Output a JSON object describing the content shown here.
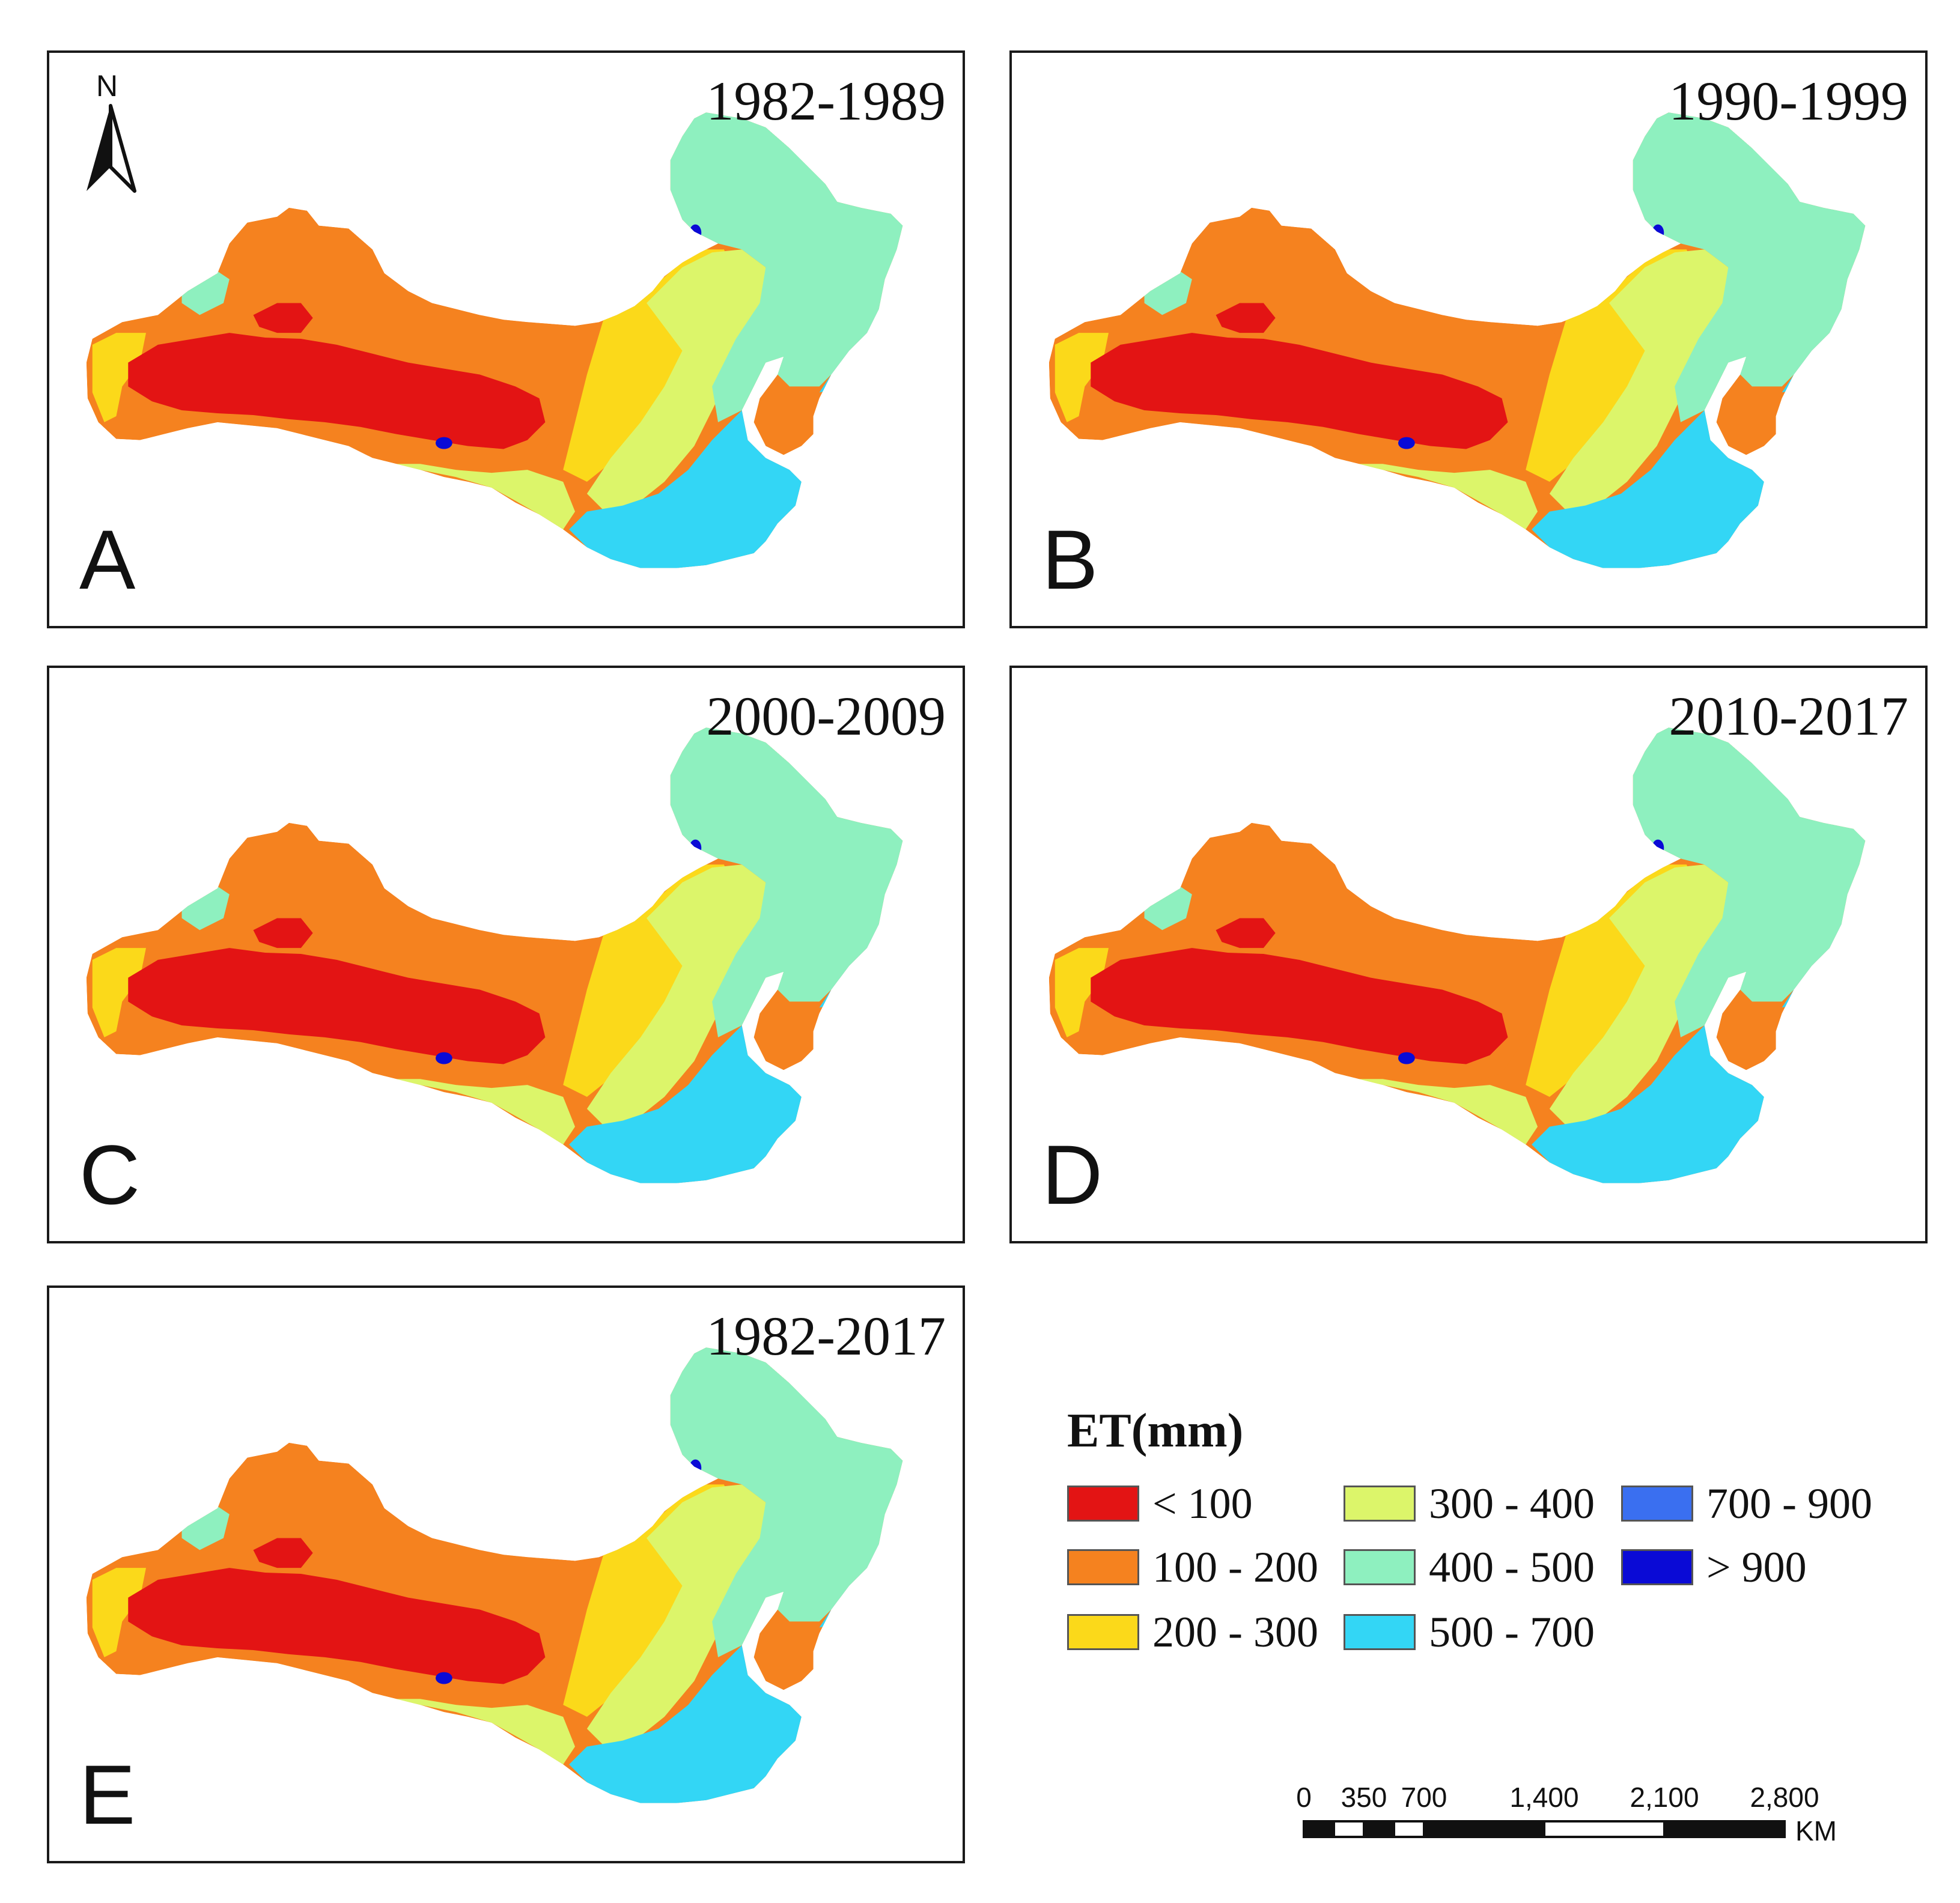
{
  "panels": [
    {
      "id": "A",
      "letter": "A",
      "period": "1982-1989"
    },
    {
      "id": "B",
      "letter": "B",
      "period": "1990-1999"
    },
    {
      "id": "C",
      "letter": "C",
      "period": "2000-2009"
    },
    {
      "id": "D",
      "letter": "D",
      "period": "2010-2017"
    },
    {
      "id": "E",
      "letter": "E",
      "period": "1982-2017"
    }
  ],
  "north_arrow": {
    "label": "N"
  },
  "legend": {
    "title": "ET(mm)",
    "classes": [
      {
        "label": "< 100",
        "color": "#e31414"
      },
      {
        "label": "100 - 200",
        "color": "#f5821f"
      },
      {
        "label": "200 - 300",
        "color": "#fbd91a"
      },
      {
        "label": "300 - 400",
        "color": "#dcf56a"
      },
      {
        "label": "400 - 500",
        "color": "#8ef0bf"
      },
      {
        "label": "500 - 700",
        "color": "#33d6f5"
      },
      {
        "label": "700 - 900",
        "color": "#3a6ff0"
      },
      {
        "label": "> 900",
        "color": "#0a0ad6"
      }
    ]
  },
  "scale_bar": {
    "ticks": [
      "0",
      "350",
      "700",
      "1,400",
      "2,100",
      "2,800"
    ],
    "unit": "KM"
  }
}
